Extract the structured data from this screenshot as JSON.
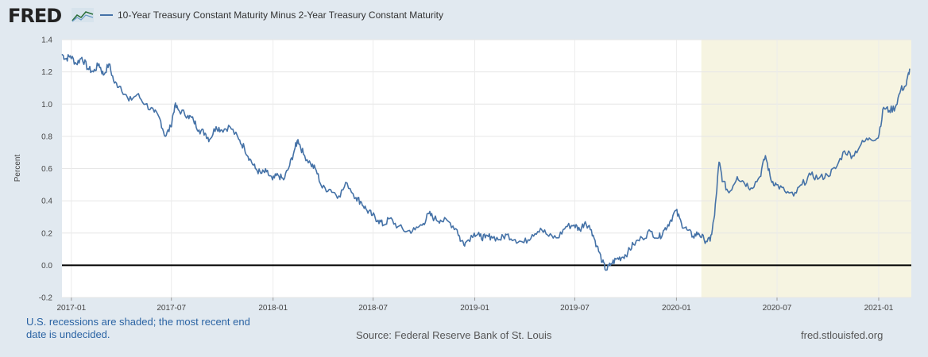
{
  "header": {
    "logo_text": "FRED",
    "logo_icon": "fred-graph-icon"
  },
  "footer": {
    "recession_note": "U.S. recessions are shaded; the most recent end date is undecided.",
    "source": "Source: Federal Reserve Bank of St. Louis",
    "url": "fred.stlouisfed.org"
  },
  "colors": {
    "series": "#4572a7",
    "recession": "#f6f4e1",
    "plot_bg": "#ffffff",
    "page_bg": "#e1e9f0"
  },
  "chart_data": {
    "type": "line",
    "title": "",
    "xlabel": "",
    "ylabel": "Percent",
    "ylim": [
      -0.2,
      1.4
    ],
    "yticks": [
      "-0.2",
      "0.0",
      "0.2",
      "0.4",
      "0.6",
      "0.8",
      "1.0",
      "1.2",
      "1.4"
    ],
    "xlim": [
      "2016-12-15",
      "2021-03-01"
    ],
    "xticks": [
      {
        "date": "2017-01-01",
        "label": "2017-01"
      },
      {
        "date": "2017-07-01",
        "label": "2017-07"
      },
      {
        "date": "2018-01-01",
        "label": "2018-01"
      },
      {
        "date": "2018-07-01",
        "label": "2018-07"
      },
      {
        "date": "2019-01-01",
        "label": "2019-01"
      },
      {
        "date": "2019-07-01",
        "label": "2019-07"
      },
      {
        "date": "2020-01-01",
        "label": "2020-01"
      },
      {
        "date": "2020-07-01",
        "label": "2020-07"
      },
      {
        "date": "2021-01-01",
        "label": "2021-01"
      }
    ],
    "reference_line": 0,
    "recession_shading": [
      {
        "start": "2020-02-15",
        "end": "2021-03-01"
      }
    ],
    "series": [
      {
        "name": "10-Year Treasury Constant Maturity Minus 2-Year Treasury Constant Maturity",
        "points": [
          [
            "2016-12-15",
            1.31
          ],
          [
            "2016-12-22",
            1.28
          ],
          [
            "2016-12-30",
            1.3
          ],
          [
            "2017-01-10",
            1.25
          ],
          [
            "2017-01-20",
            1.29
          ],
          [
            "2017-01-31",
            1.22
          ],
          [
            "2017-02-10",
            1.2
          ],
          [
            "2017-02-20",
            1.25
          ],
          [
            "2017-02-28",
            1.18
          ],
          [
            "2017-03-10",
            1.25
          ],
          [
            "2017-03-20",
            1.13
          ],
          [
            "2017-03-31",
            1.11
          ],
          [
            "2017-04-15",
            1.02
          ],
          [
            "2017-04-30",
            1.06
          ],
          [
            "2017-05-15",
            1.0
          ],
          [
            "2017-05-31",
            0.95
          ],
          [
            "2017-06-10",
            0.91
          ],
          [
            "2017-06-20",
            0.8
          ],
          [
            "2017-06-30",
            0.86
          ],
          [
            "2017-07-07",
            0.99
          ],
          [
            "2017-07-15",
            0.96
          ],
          [
            "2017-07-31",
            0.93
          ],
          [
            "2017-08-10",
            0.9
          ],
          [
            "2017-08-20",
            0.84
          ],
          [
            "2017-08-31",
            0.82
          ],
          [
            "2017-09-08",
            0.78
          ],
          [
            "2017-09-20",
            0.86
          ],
          [
            "2017-09-30",
            0.84
          ],
          [
            "2017-10-15",
            0.86
          ],
          [
            "2017-10-31",
            0.78
          ],
          [
            "2017-11-10",
            0.73
          ],
          [
            "2017-11-20",
            0.66
          ],
          [
            "2017-11-30",
            0.6
          ],
          [
            "2017-12-10",
            0.57
          ],
          [
            "2017-12-20",
            0.58
          ],
          [
            "2017-12-31",
            0.53
          ],
          [
            "2018-01-10",
            0.56
          ],
          [
            "2018-01-20",
            0.53
          ],
          [
            "2018-01-31",
            0.62
          ],
          [
            "2018-02-10",
            0.73
          ],
          [
            "2018-02-15",
            0.78
          ],
          [
            "2018-02-25",
            0.69
          ],
          [
            "2018-03-10",
            0.63
          ],
          [
            "2018-03-20",
            0.59
          ],
          [
            "2018-03-31",
            0.48
          ],
          [
            "2018-04-15",
            0.47
          ],
          [
            "2018-04-30",
            0.43
          ],
          [
            "2018-05-15",
            0.51
          ],
          [
            "2018-05-31",
            0.42
          ],
          [
            "2018-06-10",
            0.39
          ],
          [
            "2018-06-20",
            0.34
          ],
          [
            "2018-06-30",
            0.31
          ],
          [
            "2018-07-10",
            0.28
          ],
          [
            "2018-07-20",
            0.25
          ],
          [
            "2018-07-31",
            0.29
          ],
          [
            "2018-08-15",
            0.24
          ],
          [
            "2018-08-31",
            0.21
          ],
          [
            "2018-09-15",
            0.22
          ],
          [
            "2018-09-30",
            0.26
          ],
          [
            "2018-10-10",
            0.32
          ],
          [
            "2018-10-20",
            0.29
          ],
          [
            "2018-10-31",
            0.28
          ],
          [
            "2018-11-15",
            0.27
          ],
          [
            "2018-11-30",
            0.22
          ],
          [
            "2018-12-07",
            0.15
          ],
          [
            "2018-12-15",
            0.14
          ],
          [
            "2018-12-31",
            0.2
          ],
          [
            "2019-01-10",
            0.18
          ],
          [
            "2019-01-20",
            0.17
          ],
          [
            "2019-01-31",
            0.18
          ],
          [
            "2019-02-15",
            0.16
          ],
          [
            "2019-02-28",
            0.19
          ],
          [
            "2019-03-15",
            0.16
          ],
          [
            "2019-03-31",
            0.14
          ],
          [
            "2019-04-15",
            0.19
          ],
          [
            "2019-04-30",
            0.23
          ],
          [
            "2019-05-15",
            0.18
          ],
          [
            "2019-05-31",
            0.17
          ],
          [
            "2019-06-15",
            0.24
          ],
          [
            "2019-06-30",
            0.25
          ],
          [
            "2019-07-10",
            0.22
          ],
          [
            "2019-07-20",
            0.27
          ],
          [
            "2019-07-31",
            0.22
          ],
          [
            "2019-08-10",
            0.12
          ],
          [
            "2019-08-20",
            0.02
          ],
          [
            "2019-08-27",
            -0.03
          ],
          [
            "2019-09-05",
            0.01
          ],
          [
            "2019-09-15",
            0.04
          ],
          [
            "2019-09-25",
            0.05
          ],
          [
            "2019-10-05",
            0.08
          ],
          [
            "2019-10-15",
            0.13
          ],
          [
            "2019-10-31",
            0.17
          ],
          [
            "2019-11-15",
            0.21
          ],
          [
            "2019-11-30",
            0.17
          ],
          [
            "2019-12-10",
            0.22
          ],
          [
            "2019-12-20",
            0.27
          ],
          [
            "2019-12-31",
            0.34
          ],
          [
            "2020-01-10",
            0.26
          ],
          [
            "2020-01-20",
            0.22
          ],
          [
            "2020-01-31",
            0.18
          ],
          [
            "2020-02-10",
            0.2
          ],
          [
            "2020-02-20",
            0.16
          ],
          [
            "2020-03-02",
            0.15
          ],
          [
            "2020-03-10",
            0.31
          ],
          [
            "2020-03-18",
            0.64
          ],
          [
            "2020-03-25",
            0.52
          ],
          [
            "2020-04-05",
            0.45
          ],
          [
            "2020-04-20",
            0.55
          ],
          [
            "2020-05-01",
            0.52
          ],
          [
            "2020-05-15",
            0.48
          ],
          [
            "2020-05-31",
            0.55
          ],
          [
            "2020-06-10",
            0.68
          ],
          [
            "2020-06-20",
            0.53
          ],
          [
            "2020-06-30",
            0.5
          ],
          [
            "2020-07-15",
            0.46
          ],
          [
            "2020-07-31",
            0.43
          ],
          [
            "2020-08-15",
            0.5
          ],
          [
            "2020-08-31",
            0.56
          ],
          [
            "2020-09-15",
            0.54
          ],
          [
            "2020-09-30",
            0.56
          ],
          [
            "2020-10-15",
            0.6
          ],
          [
            "2020-10-31",
            0.71
          ],
          [
            "2020-11-15",
            0.68
          ],
          [
            "2020-11-30",
            0.75
          ],
          [
            "2020-12-15",
            0.79
          ],
          [
            "2020-12-31",
            0.79
          ],
          [
            "2021-01-10",
            0.98
          ],
          [
            "2021-01-20",
            0.96
          ],
          [
            "2021-01-31",
            0.98
          ],
          [
            "2021-02-10",
            1.09
          ],
          [
            "2021-02-20",
            1.12
          ],
          [
            "2021-02-26",
            1.22
          ]
        ]
      }
    ]
  }
}
